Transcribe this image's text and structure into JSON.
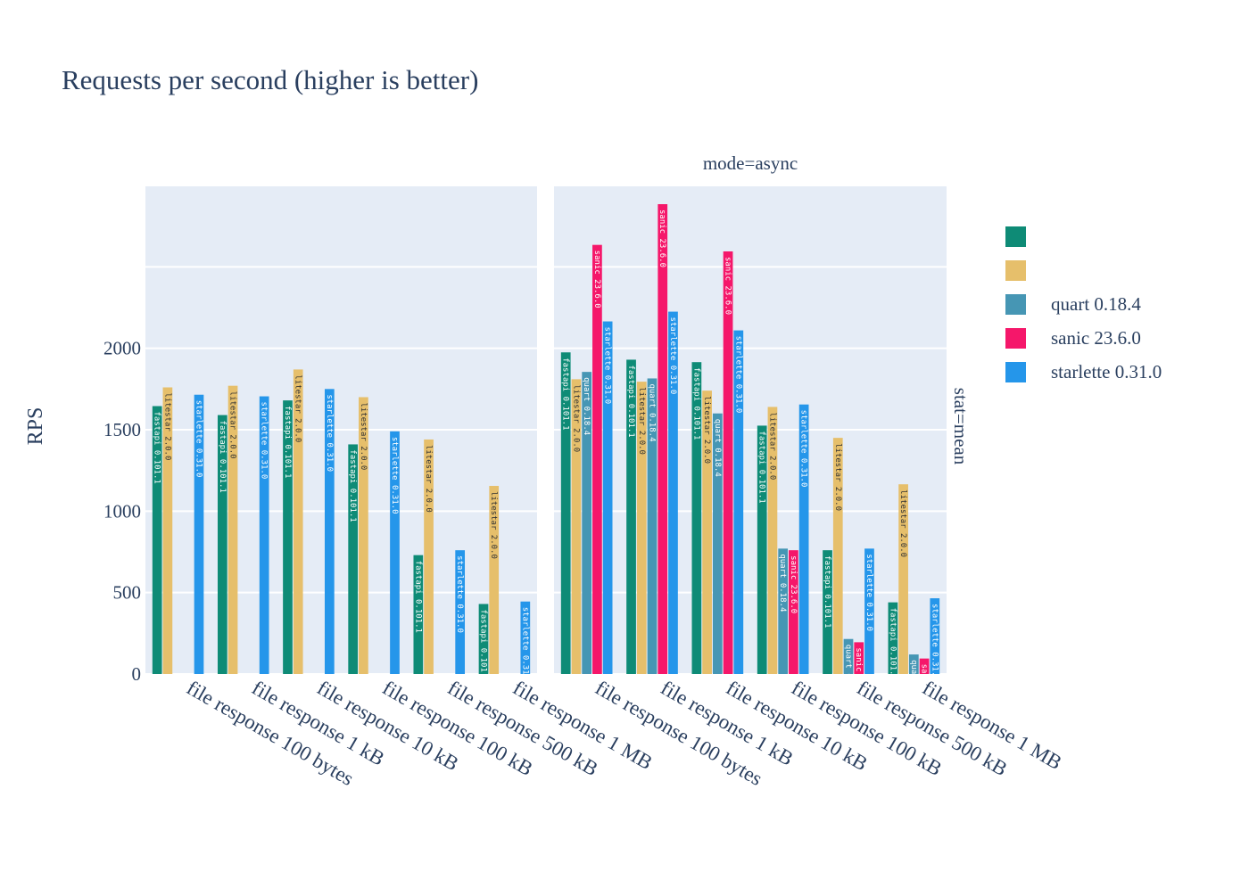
{
  "chart_data": {
    "type": "bar",
    "title": "Requests per second (higher is better)",
    "ylabel": "RPS",
    "ylim": [
      0,
      3000
    ],
    "yticks": [
      0,
      500,
      1000,
      1500,
      2000
    ],
    "row_facet_label": "stat=mean",
    "series": [
      {
        "name": "",
        "color": "#0e8b76",
        "label": "fastapi 0.101.1"
      },
      {
        "name": "",
        "color": "#e6bf6b",
        "label": "litestar 2.0.0"
      },
      {
        "name": "quart 0.18.4",
        "color": "#4696b4",
        "label": "quart 0.18.4"
      },
      {
        "name": "sanic 23.6.0",
        "color": "#f5176a",
        "label": "sanic 23.6.0"
      },
      {
        "name": "starlette 0.31.0",
        "color": "#2596ea",
        "label": "starlette 0.31.0"
      }
    ],
    "panels": [
      {
        "facet_label": "",
        "categories": [
          "file response 100 bytes",
          "file response 1 kB",
          "file response 10 kB",
          "file response 100 kB",
          "file response 500 kB",
          "file response 1 MB"
        ],
        "values": [
          [
            1645,
            1590,
            1680,
            1410,
            730,
            430
          ],
          [
            1760,
            1770,
            1870,
            1700,
            1440,
            1155
          ],
          [
            null,
            null,
            null,
            null,
            null,
            null
          ],
          [
            null,
            null,
            null,
            null,
            null,
            null
          ],
          [
            1715,
            1705,
            1750,
            1490,
            760,
            445
          ]
        ]
      },
      {
        "facet_label": "mode=async",
        "categories": [
          "file response 100 bytes",
          "file response 1 kB",
          "file response 10 kB",
          "file response 100 kB",
          "file response 500 kB",
          "file response 1 MB"
        ],
        "values": [
          [
            1975,
            1930,
            1915,
            1525,
            760,
            440
          ],
          [
            1810,
            1795,
            1740,
            1640,
            1450,
            1165
          ],
          [
            1855,
            1815,
            1600,
            770,
            215,
            120
          ],
          [
            2635,
            2885,
            2595,
            760,
            195,
            95
          ],
          [
            2165,
            2225,
            2110,
            1655,
            770,
            465
          ]
        ]
      }
    ]
  }
}
